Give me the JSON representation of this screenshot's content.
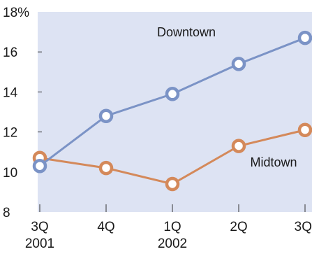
{
  "colors": {
    "plot_background": "#dde3f3",
    "downtown_line": "#7b93c6",
    "midtown_line": "#d4895a",
    "marker_fill": "#ffffff",
    "axis_text": "#1a1a1a"
  },
  "chart_data": {
    "type": "line",
    "title": "",
    "xlabel": "",
    "ylabel": "",
    "categories": [
      "3Q",
      "4Q",
      "1Q",
      "2Q",
      "3Q"
    ],
    "year_labels": [
      "2001",
      "",
      "2002",
      "",
      ""
    ],
    "y_ticks": [
      8,
      10,
      12,
      14,
      16,
      18
    ],
    "y_tick_labels": [
      "8",
      "10",
      "12",
      "14",
      "16",
      "18%"
    ],
    "ylim": [
      8,
      18
    ],
    "grid": false,
    "series": [
      {
        "name": "Downtown",
        "values": [
          10.3,
          12.8,
          13.9,
          15.4,
          16.7
        ]
      },
      {
        "name": "Midtown",
        "values": [
          10.7,
          10.2,
          9.4,
          11.3,
          12.1
        ]
      }
    ]
  }
}
